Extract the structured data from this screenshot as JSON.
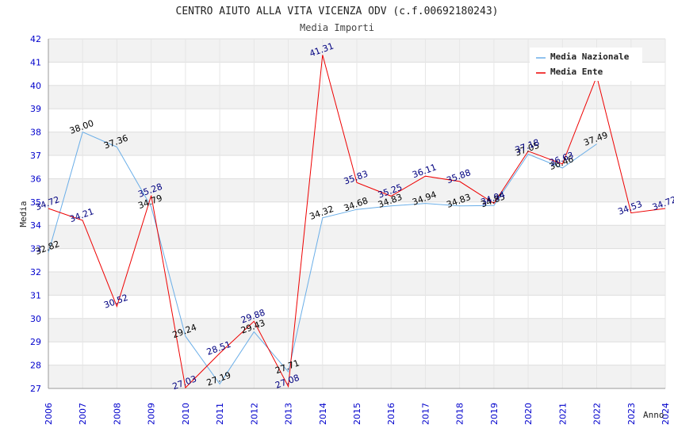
{
  "chart_data": {
    "type": "line",
    "title": "CENTRO AIUTO ALLA VITA VICENZA ODV (c.f.00692180243)",
    "subtitle": "Media Importi",
    "xlabel": "Anno",
    "ylabel": "Media",
    "ylim": [
      27,
      42
    ],
    "yticks": [
      "27",
      "28",
      "29",
      "30",
      "31",
      "32",
      "33",
      "34",
      "35",
      "36",
      "37",
      "38",
      "39",
      "40",
      "41",
      "42"
    ],
    "x": [
      "2006",
      "2007",
      "2008",
      "2009",
      "2010",
      "2011",
      "2012",
      "2013",
      "2014",
      "2015",
      "2016",
      "2017",
      "2018",
      "2019",
      "2020",
      "2021",
      "2022",
      "2023",
      "2024"
    ],
    "legend_position": "top-right",
    "grid": "horizontal bands",
    "series": [
      {
        "name": "Media Nazionale",
        "color": "#6aaee8",
        "label_color": "#000000",
        "values": [
          32.82,
          38.0,
          37.36,
          34.79,
          29.24,
          27.19,
          29.43,
          27.71,
          34.32,
          34.68,
          34.83,
          34.94,
          34.83,
          34.85,
          37.05,
          36.46,
          37.49,
          null,
          null
        ],
        "labels": [
          "32.82",
          "38.00",
          "37.36",
          "34.79",
          "29.24",
          "27.19",
          "29.43",
          "27.71",
          "34.32",
          "34.68",
          "34.83",
          "34.94",
          "34.83",
          "34.85",
          "37.05",
          "36.46",
          "37.49",
          "",
          ""
        ]
      },
      {
        "name": "Media Ente",
        "color": "#ee0000",
        "label_color": "#000080",
        "values": [
          34.72,
          34.21,
          30.52,
          35.28,
          27.03,
          28.51,
          29.88,
          27.08,
          41.31,
          35.83,
          35.25,
          36.11,
          35.88,
          34.94,
          37.18,
          36.63,
          40.39,
          34.53,
          34.72
        ],
        "labels": [
          "34.72",
          "34.21",
          "30.52",
          "35.28",
          "27.03",
          "28.51",
          "29.88",
          "27.08",
          "41.31",
          "35.83",
          "35.25",
          "36.11",
          "35.88",
          "34.94",
          "37.18",
          "36.63",
          "",
          "34.53",
          "34.72"
        ]
      }
    ]
  }
}
